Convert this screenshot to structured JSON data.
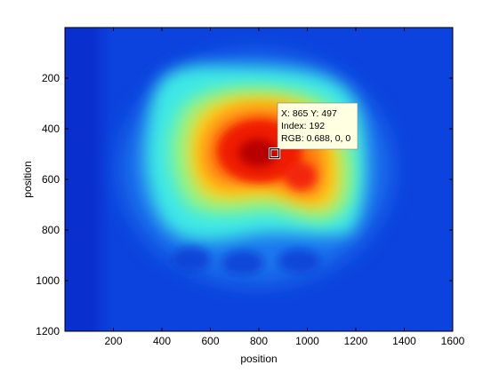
{
  "chart_data": {
    "type": "heatmap",
    "colormap": "jet",
    "xlabel": "position",
    "ylabel": "position",
    "xlim": [
      0,
      1600
    ],
    "ylim": [
      1200,
      0
    ],
    "x_ticks": [
      200,
      400,
      600,
      800,
      1000,
      1200,
      1400,
      1600
    ],
    "y_ticks": [
      200,
      400,
      600,
      800,
      1000,
      1200
    ],
    "grid": false,
    "hotspot": {
      "x": 780,
      "y": 520,
      "peak_level": 0.92
    },
    "datatip": {
      "x": 865,
      "y": 497,
      "line1": "X: 865 Y: 497",
      "line2": "Index: 192",
      "line3": "RGB: 0.688, 0, 0"
    }
  }
}
